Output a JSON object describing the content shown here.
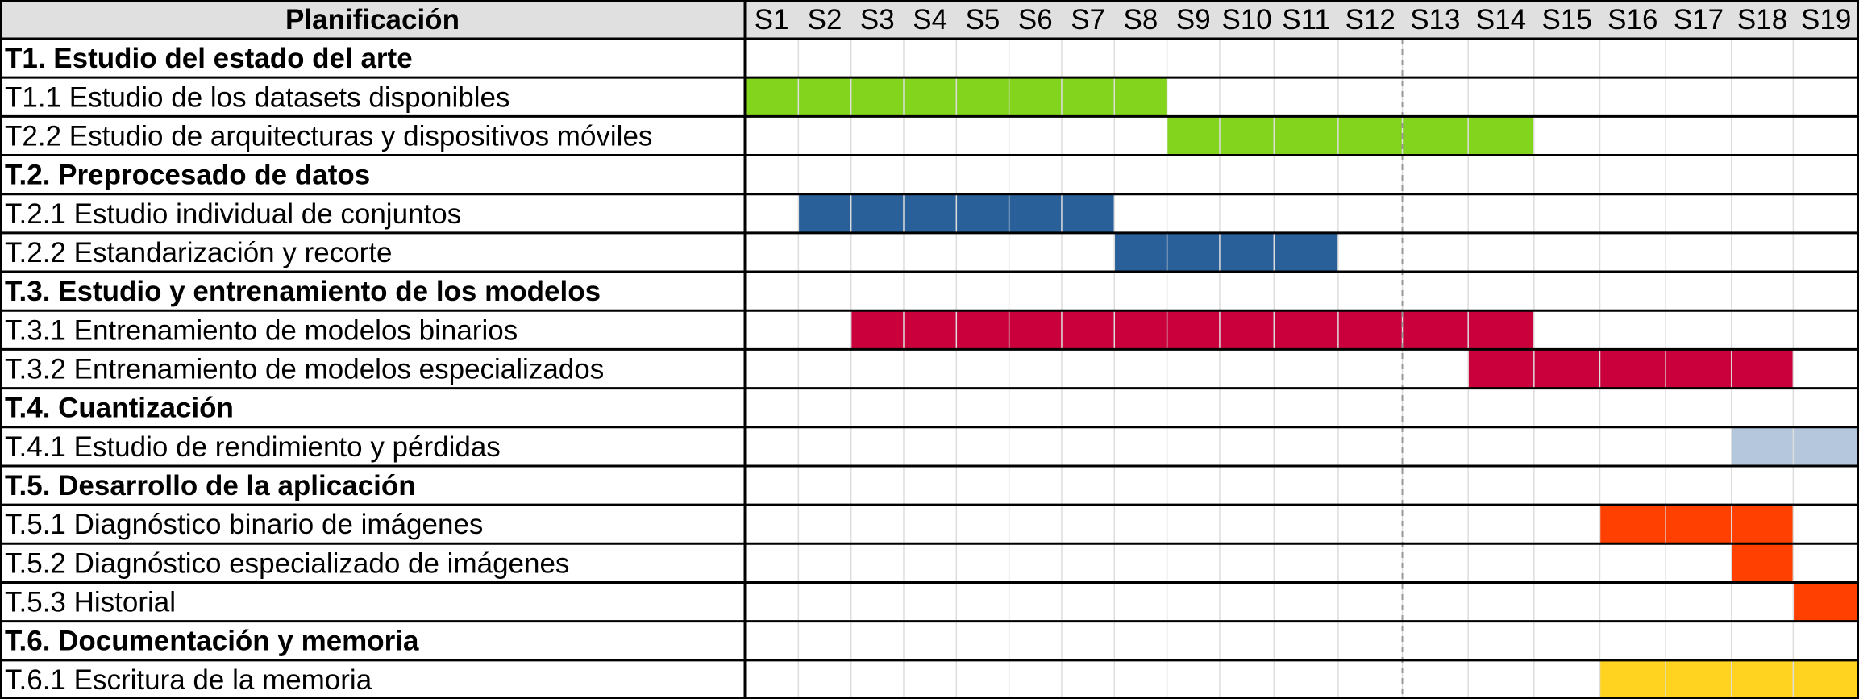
{
  "chart_data": {
    "type": "gantt",
    "header_title": "Planificación",
    "weeks": [
      "S1",
      "S2",
      "S3",
      "S4",
      "S5",
      "S6",
      "S7",
      "S8",
      "S9",
      "S10",
      "S11",
      "S12",
      "S13",
      "S14",
      "S15",
      "S16",
      "S17",
      "S18",
      "S19"
    ],
    "rows": [
      {
        "label": "T1. Estudio del estado del arte",
        "group": true
      },
      {
        "label": "T1.1 Estudio de los datasets disponibles",
        "group": false,
        "start": 1,
        "end": 8,
        "color": "#83d41c"
      },
      {
        "label": "T2.2 Estudio de arquitecturas y dispositivos móviles",
        "group": false,
        "start": 9,
        "end": 14,
        "color": "#83d41c"
      },
      {
        "label": "T.2. Preprocesado de datos",
        "group": true
      },
      {
        "label": "T.2.1 Estudio individual de conjuntos",
        "group": false,
        "start": 2,
        "end": 7,
        "color": "#2a6099"
      },
      {
        "label": "T.2.2 Estandarización y recorte",
        "group": false,
        "start": 8,
        "end": 11,
        "color": "#2a6099"
      },
      {
        "label": "T.3. Estudio y entrenamiento de los modelos",
        "group": true
      },
      {
        "label": "T.3.1 Entrenamiento de modelos binarios",
        "group": false,
        "start": 3,
        "end": 14,
        "color": "#c9003c"
      },
      {
        "label": "T.3.2 Entrenamiento de modelos especializados",
        "group": false,
        "start": 14,
        "end": 18,
        "color": "#c9003c"
      },
      {
        "label": "T.4. Cuantización",
        "group": true
      },
      {
        "label": "T.4.1 Estudio de rendimiento y pérdidas",
        "group": false,
        "start": 18,
        "end": 19,
        "color": "#b4c7dc"
      },
      {
        "label": "T.5. Desarrollo de la aplicación",
        "group": true
      },
      {
        "label": "T.5.1 Diagnóstico binario de imágenes",
        "group": false,
        "start": 16,
        "end": 18,
        "color": "#ff4000"
      },
      {
        "label": "T.5.2 Diagnóstico especializado de imágenes",
        "group": false,
        "start": 18,
        "end": 18,
        "color": "#ff4000"
      },
      {
        "label": "T.5.3 Historial",
        "group": false,
        "start": 19,
        "end": 19,
        "color": "#ff4000"
      },
      {
        "label": "T.6. Documentación y memoria",
        "group": true
      },
      {
        "label": "T.6.1 Escritura de la memoria",
        "group": false,
        "start": 16,
        "end": 19,
        "color": "#ffd320"
      }
    ],
    "marker_after_week": 12,
    "colors": {
      "header_bg": "#e0e0e0",
      "grid_line": "#dddddd",
      "border": "#000000"
    }
  }
}
